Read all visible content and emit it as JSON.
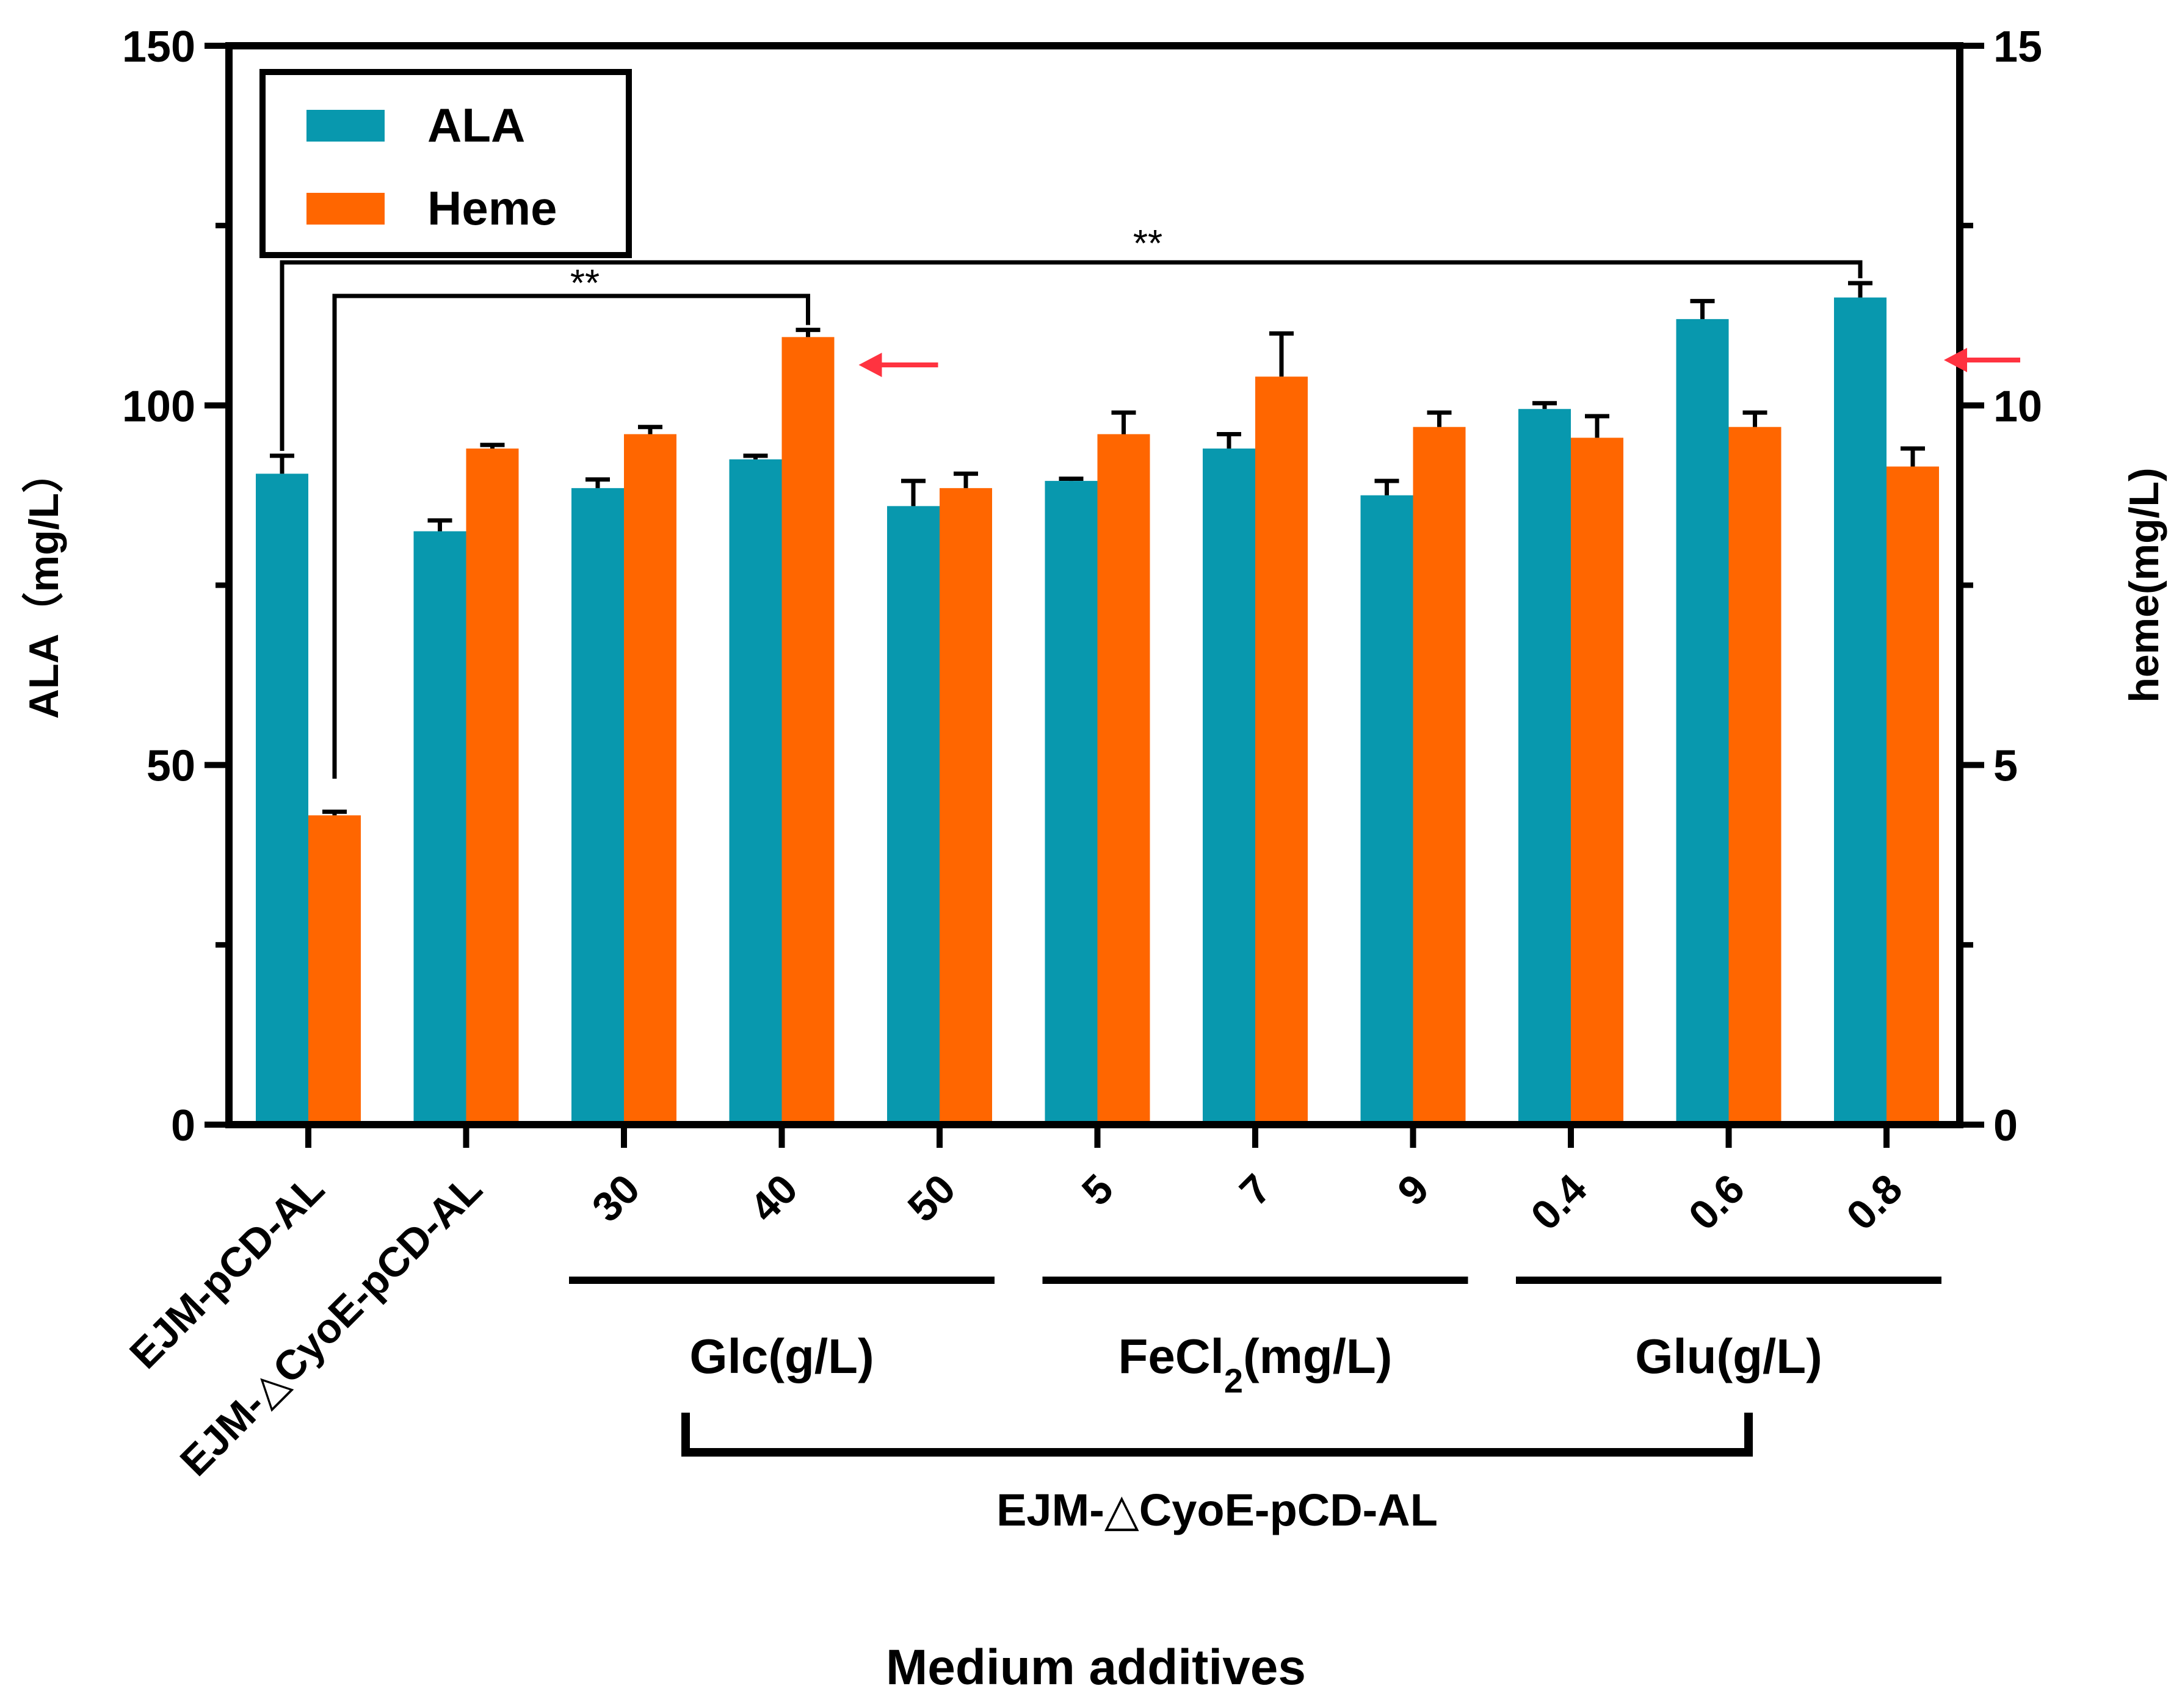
{
  "chart_data": {
    "type": "bar",
    "xlabel": "Medium additives",
    "y_left": {
      "label": "ALA（mg/L）",
      "ylim": [
        0,
        150
      ],
      "major_ticks": [
        0,
        50,
        100,
        150
      ],
      "minor_ticks": [
        25,
        75,
        125
      ]
    },
    "y_right": {
      "label": "heme(mg/L)",
      "ylim": [
        0,
        15
      ],
      "major_ticks": [
        0,
        5,
        10,
        15
      ],
      "minor_ticks": [
        2.5,
        7.5,
        12.5
      ]
    },
    "categories": [
      "EJM-pCD-AL",
      "EJM-△CyoE-pCD-AL",
      "30",
      "40",
      "50",
      "5",
      "7",
      "9",
      "0.4",
      "0.6",
      "0.8"
    ],
    "series": [
      {
        "name": "ALA",
        "axis": "left",
        "color": "#0898AE",
        "values": [
          90.5,
          82.5,
          88.5,
          92.5,
          86.0,
          89.5,
          94.0,
          87.5,
          99.5,
          112.0,
          115.0
        ],
        "errors": [
          2.5,
          1.5,
          1.2,
          0.5,
          3.5,
          0.3,
          2.0,
          2.0,
          0.8,
          2.5,
          2.0
        ]
      },
      {
        "name": "Heme",
        "axis": "right",
        "color": "#FF6600",
        "values": [
          4.3,
          9.4,
          9.6,
          10.95,
          8.85,
          9.6,
          10.4,
          9.7,
          9.55,
          9.7,
          9.15
        ],
        "errors": [
          0.05,
          0.05,
          0.1,
          0.1,
          0.2,
          0.3,
          0.6,
          0.2,
          0.3,
          0.2,
          0.25
        ]
      }
    ],
    "groups": [
      {
        "label_main": "Glc(g/L)",
        "category_range": [
          2,
          4
        ]
      },
      {
        "label_main": "FeCl",
        "label_sub": "2",
        "label_tail": "(mg/L)",
        "category_range": [
          5,
          7
        ]
      },
      {
        "label_main": "Glu(g/L)",
        "category_range": [
          8,
          10
        ]
      }
    ],
    "strain_group": {
      "label": "EJM-△CyoE-pCD-AL",
      "category_range": [
        2,
        10
      ]
    },
    "significance": [
      {
        "label": "**",
        "from": 0,
        "to": 10
      },
      {
        "label": "**",
        "from": 0,
        "to": 3
      }
    ],
    "highlighted_bars": [
      {
        "category": 3,
        "series": "Heme"
      },
      {
        "category": 10,
        "series": "ALA"
      }
    ],
    "legend": {
      "position": "top-left",
      "entries": [
        "ALA",
        "Heme"
      ]
    },
    "colors": {
      "ala": "#0898AE",
      "heme": "#FF6600",
      "arrow": "#FF3340",
      "axis": "#000000"
    }
  }
}
